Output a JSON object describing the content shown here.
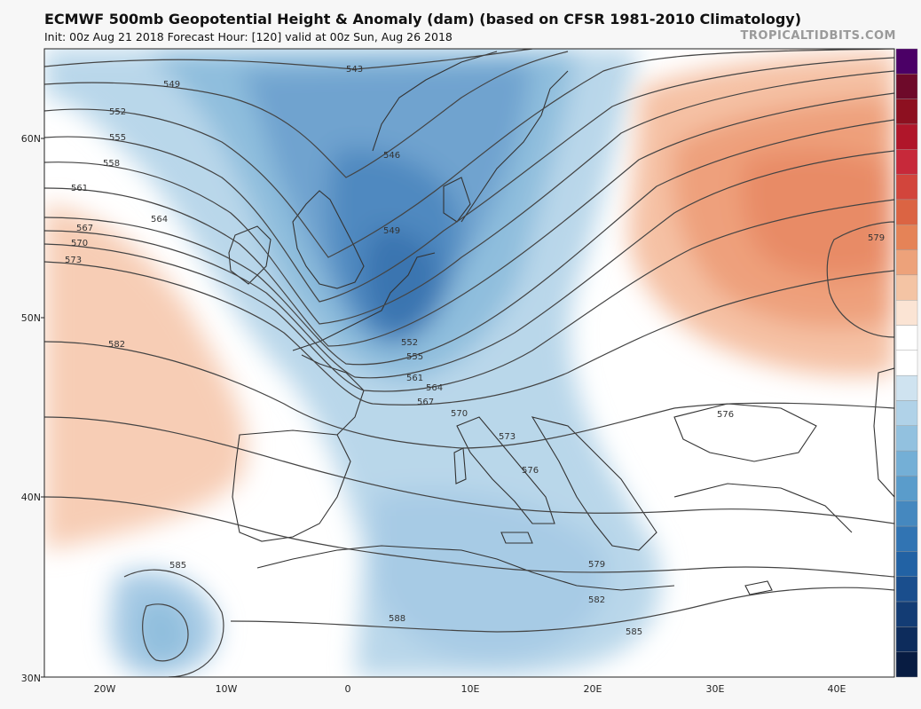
{
  "header": {
    "title": "ECMWF 500mb Geopotential Height & Anomaly (dam) (based on CFSR 1981-2010 Climatology)",
    "subtitle": "Init: 00z Aug 21 2018   Forecast Hour: [120]   valid at 00z Sun, Aug 26 2018",
    "credit": "TROPICALTIDBITS.COM"
  },
  "axes": {
    "lat_labels": [
      "60N",
      "50N",
      "40N",
      "30N"
    ],
    "lon_labels": [
      "20W",
      "10W",
      "0",
      "10E",
      "20E",
      "30E",
      "40E"
    ]
  },
  "contour_labels": [
    {
      "text": "543"
    },
    {
      "text": "549"
    },
    {
      "text": "546"
    },
    {
      "text": "549"
    },
    {
      "text": "552"
    },
    {
      "text": "555"
    },
    {
      "text": "558"
    },
    {
      "text": "561"
    },
    {
      "text": "564"
    },
    {
      "text": "567"
    },
    {
      "text": "570"
    },
    {
      "text": "573"
    },
    {
      "text": "582"
    },
    {
      "text": "552"
    },
    {
      "text": "555"
    },
    {
      "text": "561"
    },
    {
      "text": "564"
    },
    {
      "text": "567"
    },
    {
      "text": "570"
    },
    {
      "text": "573"
    },
    {
      "text": "576"
    },
    {
      "text": "576"
    },
    {
      "text": "579"
    },
    {
      "text": "579"
    },
    {
      "text": "582"
    },
    {
      "text": "585"
    },
    {
      "text": "588"
    },
    {
      "text": "585"
    }
  ],
  "colors": {
    "negative_anomaly": "#6fa3cf",
    "positive_anomaly": "#e88b66",
    "land_outline": "#333333",
    "contour": "#444444"
  },
  "colorbar": [
    "#4b0066",
    "#6e0a2a",
    "#8d1020",
    "#b0162a",
    "#c7293a",
    "#d2453c",
    "#db6443",
    "#e58357",
    "#eda27a",
    "#f4c4a4",
    "#fbe4d4",
    "#ffffff",
    "#ffffff",
    "#cfe3f0",
    "#b0d2e8",
    "#92c1df",
    "#74afd6",
    "#5a9ccb",
    "#4588bf",
    "#3174b3",
    "#2262a4",
    "#1a4e8d",
    "#133c74",
    "#0d2c5c",
    "#081c42"
  ]
}
